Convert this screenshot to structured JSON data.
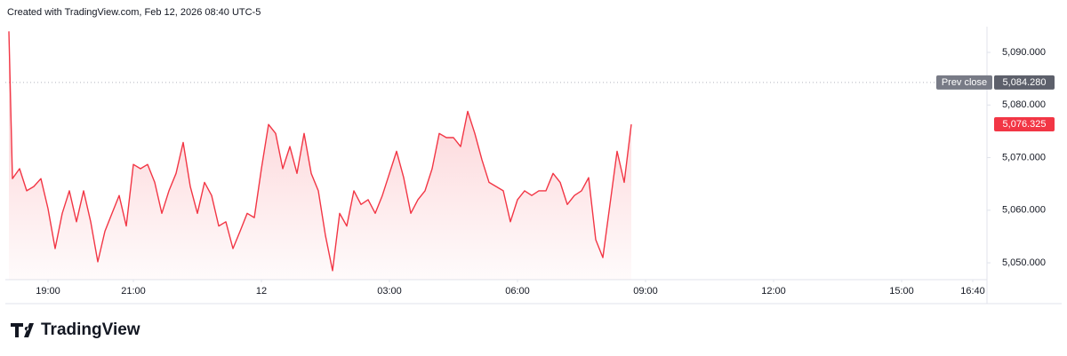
{
  "chart_data": {
    "type": "area",
    "source": "Created with TradingView.com, Feb 12, 2026 08:40 UTC-5",
    "logo_text": "TradingView",
    "color": "#f23645",
    "x": [
      "18:05",
      "18:10",
      "18:20",
      "18:30",
      "18:40",
      "18:50",
      "19:00",
      "19:10",
      "19:20",
      "19:30",
      "19:40",
      "19:50",
      "20:00",
      "20:10",
      "20:20",
      "20:30",
      "20:40",
      "20:50",
      "21:00",
      "21:10",
      "21:20",
      "21:30",
      "21:40",
      "21:50",
      "22:00",
      "22:10",
      "22:20",
      "22:30",
      "22:40",
      "22:50",
      "23:00",
      "23:10",
      "23:20",
      "23:30",
      "23:40",
      "23:50",
      "00:00",
      "00:10",
      "00:20",
      "00:30",
      "00:40",
      "00:50",
      "01:00",
      "01:10",
      "01:20",
      "01:30",
      "01:40",
      "01:50",
      "02:00",
      "02:10",
      "02:20",
      "02:30",
      "02:40",
      "02:50",
      "03:00",
      "03:10",
      "03:20",
      "03:30",
      "03:40",
      "03:50",
      "04:00",
      "04:10",
      "04:20",
      "04:30",
      "04:40",
      "04:50",
      "05:00",
      "05:10",
      "05:20",
      "05:30",
      "05:40",
      "05:50",
      "06:00",
      "06:10",
      "06:20",
      "06:30",
      "06:40",
      "06:50",
      "07:00",
      "07:10",
      "07:20",
      "07:30",
      "07:40",
      "07:50",
      "08:00",
      "08:10",
      "08:20",
      "08:30",
      "08:40"
    ],
    "values": [
      5094,
      5066,
      5067.9,
      5063.7,
      5064.5,
      5066,
      5060.3,
      5052.7,
      5059.4,
      5063.7,
      5057.8,
      5063.7,
      5057.8,
      5050.2,
      5056,
      5059.4,
      5062.8,
      5057,
      5068.7,
      5067.9,
      5068.7,
      5065.3,
      5059.4,
      5063.7,
      5067,
      5072.9,
      5064.5,
      5059.4,
      5065.3,
      5062.8,
      5057,
      5057.8,
      5052.7,
      5056,
      5059.4,
      5058.6,
      5067.9,
      5076.3,
      5074.6,
      5067.9,
      5072.1,
      5067,
      5074.6,
      5067,
      5063.7,
      5055.2,
      5048.5,
      5059.4,
      5057,
      5063.7,
      5061.1,
      5062,
      5059.4,
      5062.8,
      5067,
      5071.2,
      5066.2,
      5059.4,
      5062,
      5063.7,
      5067.9,
      5074.6,
      5073.8,
      5073.8,
      5072.1,
      5078.8,
      5074.6,
      5069.6,
      5065.3,
      5064.5,
      5063.7,
      5057.8,
      5062,
      5063.7,
      5062.8,
      5063.7,
      5063.7,
      5067,
      5065.3,
      5061.1,
      5062.8,
      5063.7,
      5066.2,
      5054.4,
      5051,
      5061.1,
      5071.2,
      5065.3,
      5076.325
    ],
    "last_price": {
      "value": 5076.325,
      "label": "5,076.325"
    },
    "prev_close": {
      "name": "Prev close",
      "value": 5084.28,
      "label": "5,084.280"
    },
    "xlim": [
      "18:00",
      "17:00"
    ],
    "xticks": [
      {
        "value": "19:00",
        "label": "19:00"
      },
      {
        "value": "21:00",
        "label": "21:00"
      },
      {
        "value": "00:00",
        "label": "12"
      },
      {
        "value": "03:00",
        "label": "03:00"
      },
      {
        "value": "06:00",
        "label": "06:00"
      },
      {
        "value": "09:00",
        "label": "09:00"
      },
      {
        "value": "12:00",
        "label": "12:00"
      },
      {
        "value": "15:00",
        "label": "15:00"
      },
      {
        "value": "16:40",
        "label": "16:40"
      }
    ],
    "ylim": [
      5046.8,
      5094.9
    ],
    "yticks": [
      {
        "value": 5050,
        "label": "5,050.000"
      },
      {
        "value": 5060,
        "label": "5,060.000"
      },
      {
        "value": 5070,
        "label": "5,070.000"
      },
      {
        "value": 5080,
        "label": "5,080.000"
      },
      {
        "value": 5090,
        "label": "5,090.000"
      }
    ]
  }
}
